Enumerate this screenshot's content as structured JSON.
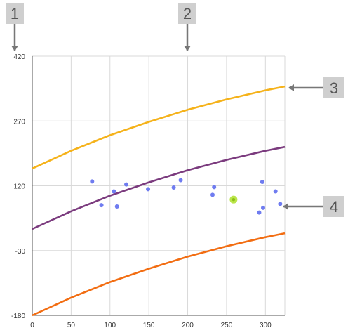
{
  "chart_data": {
    "type": "scatter",
    "x_ticks": [
      "0",
      "50",
      "100",
      "150",
      "200",
      "250",
      "300"
    ],
    "y_ticks": [
      "420",
      "270",
      "120",
      "-30",
      "-180"
    ],
    "xlim": [
      0,
      325
    ],
    "ylim": [
      -180,
      420
    ],
    "grid": true,
    "points": [
      {
        "x": 77,
        "y": 130
      },
      {
        "x": 89,
        "y": 75
      },
      {
        "x": 105,
        "y": 107
      },
      {
        "x": 109,
        "y": 72
      },
      {
        "x": 121,
        "y": 123
      },
      {
        "x": 149,
        "y": 112
      },
      {
        "x": 182,
        "y": 116
      },
      {
        "x": 191,
        "y": 133
      },
      {
        "x": 232,
        "y": 99
      },
      {
        "x": 234,
        "y": 117
      },
      {
        "x": 292,
        "y": 58
      },
      {
        "x": 296,
        "y": 129
      },
      {
        "x": 297,
        "y": 69
      },
      {
        "x": 313,
        "y": 107
      },
      {
        "x": 319,
        "y": 78
      }
    ],
    "highlight_point": {
      "x": 259,
      "y": 88
    },
    "series": [
      {
        "role": "upper",
        "color": "#f5b21a",
        "x": [
          0,
          50,
          100,
          150,
          200,
          250,
          300,
          325
        ],
        "y": [
          160,
          201,
          237,
          268,
          296,
          320,
          341,
          350
        ]
      },
      {
        "role": "center",
        "color": "#7b3b7e",
        "x": [
          0,
          50,
          100,
          150,
          200,
          250,
          300,
          325
        ],
        "y": [
          20,
          61,
          97,
          128,
          156,
          180,
          201,
          210
        ]
      },
      {
        "role": "lower",
        "color": "#f26d12",
        "x": [
          0,
          50,
          100,
          150,
          200,
          250,
          300,
          325
        ],
        "y": [
          -180,
          -139,
          -103,
          -72,
          -44,
          -20,
          1,
          10
        ]
      }
    ],
    "point_color": "#6f7cf0",
    "highlight_color": "#aee12a"
  },
  "callouts": [
    {
      "label": "1",
      "target": "y-axis top tick"
    },
    {
      "label": "2",
      "target": "chart top edge"
    },
    {
      "label": "3",
      "target": "upper curve"
    },
    {
      "label": "4",
      "target": "data point"
    }
  ]
}
